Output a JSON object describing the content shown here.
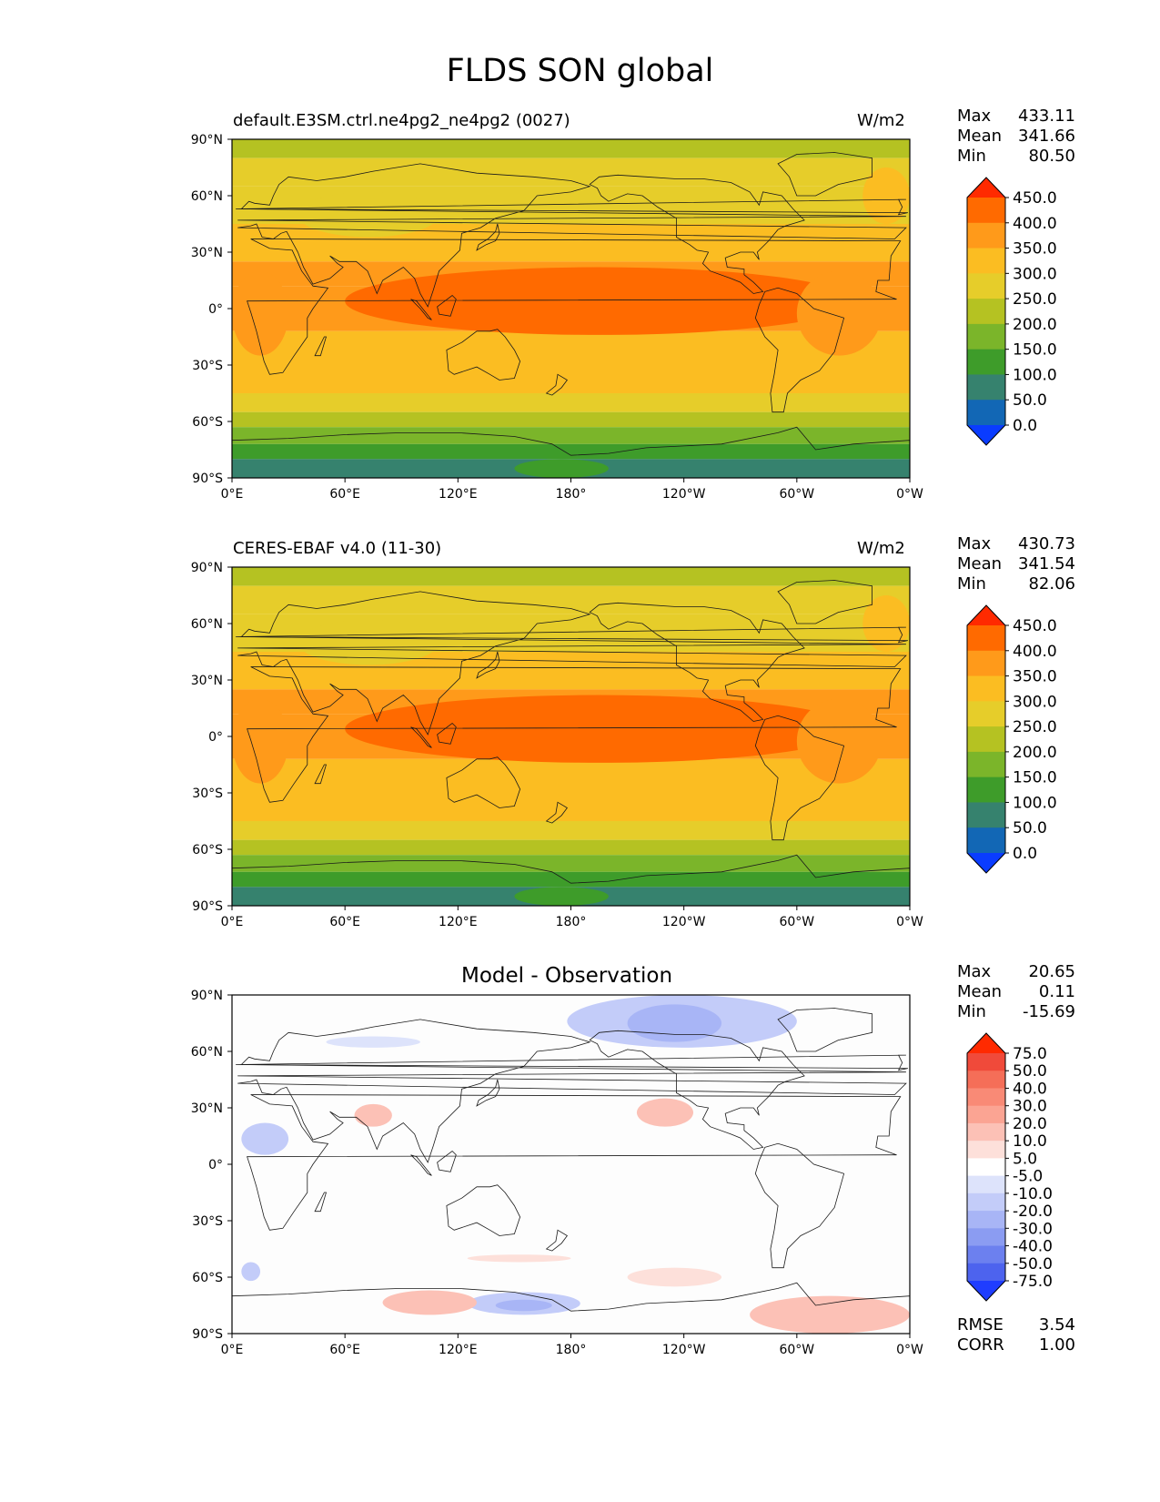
{
  "figure_title": "FLDS SON global",
  "chart_data": [
    {
      "type": "heatmap",
      "title": "default.E3SM.ctrl.ne4pg2_ne4pg2 (0027)",
      "units": "W/m2",
      "stats": [
        {
          "label": "Max",
          "value": "433.11"
        },
        {
          "label": "Mean",
          "value": "341.66"
        },
        {
          "label": "Min",
          "value": "80.50"
        }
      ],
      "xlim": [
        0,
        360
      ],
      "ylim": [
        -90,
        90
      ],
      "x_ticks": [
        "0°E",
        "60°E",
        "120°E",
        "180°",
        "120°W",
        "60°W",
        "0°W"
      ],
      "y_ticks": [
        "90°N",
        "60°N",
        "30°N",
        "0°",
        "30°S",
        "60°S",
        "90°S"
      ],
      "colorbar": {
        "levels": [
          "450.0",
          "400.0",
          "350.0",
          "300.0",
          "250.0",
          "200.0",
          "150.0",
          "100.0",
          "50.0",
          "0.0"
        ],
        "colors": [
          "#ff2a00",
          "#ff6a00",
          "#ff9a1a",
          "#fbbd22",
          "#e6cd2a",
          "#b5c222",
          "#7bb52a",
          "#3e9c2a",
          "#36826e",
          "#1267b5",
          "#0a3cff"
        ],
        "extend": "both"
      }
    },
    {
      "type": "heatmap",
      "title": "CERES-EBAF v4.0 (11-30)",
      "units": "W/m2",
      "stats": [
        {
          "label": "Max",
          "value": "430.73"
        },
        {
          "label": "Mean",
          "value": "341.54"
        },
        {
          "label": "Min",
          "value": "82.06"
        }
      ],
      "xlim": [
        0,
        360
      ],
      "ylim": [
        -90,
        90
      ],
      "x_ticks": [
        "0°E",
        "60°E",
        "120°E",
        "180°",
        "120°W",
        "60°W",
        "0°W"
      ],
      "y_ticks": [
        "90°N",
        "60°N",
        "30°N",
        "0°",
        "30°S",
        "60°S",
        "90°S"
      ],
      "colorbar": {
        "levels": [
          "450.0",
          "400.0",
          "350.0",
          "300.0",
          "250.0",
          "200.0",
          "150.0",
          "100.0",
          "50.0",
          "0.0"
        ],
        "colors": [
          "#ff2a00",
          "#ff6a00",
          "#ff9a1a",
          "#fbbd22",
          "#e6cd2a",
          "#b5c222",
          "#7bb52a",
          "#3e9c2a",
          "#36826e",
          "#1267b5",
          "#0a3cff"
        ],
        "extend": "both"
      }
    },
    {
      "type": "heatmap",
      "title": "Model - Observation",
      "units": "",
      "stats": [
        {
          "label": "Max",
          "value": "20.65"
        },
        {
          "label": "Mean",
          "value": "0.11"
        },
        {
          "label": "Min",
          "value": "-15.69"
        }
      ],
      "extra_stats": [
        {
          "label": "RMSE",
          "value": "3.54"
        },
        {
          "label": "CORR",
          "value": "1.00"
        }
      ],
      "xlim": [
        0,
        360
      ],
      "ylim": [
        -90,
        90
      ],
      "x_ticks": [
        "0°E",
        "60°E",
        "120°E",
        "180°",
        "120°W",
        "60°W",
        "0°W"
      ],
      "y_ticks": [
        "90°N",
        "60°N",
        "30°N",
        "0°",
        "30°S",
        "60°S",
        "90°S"
      ],
      "colorbar": {
        "levels": [
          "75.0",
          "50.0",
          "40.0",
          "30.0",
          "20.0",
          "10.0",
          "5.0",
          "-5.0",
          "-10.0",
          "-20.0",
          "-30.0",
          "-40.0",
          "-50.0",
          "-75.0"
        ],
        "colors": [
          "#ff2a00",
          "#f04a3a",
          "#f56e58",
          "#f98a76",
          "#fba493",
          "#fcc1b6",
          "#fde0da",
          "#ffffff",
          "#dde3fb",
          "#c3ccf9",
          "#a8b5f6",
          "#8b9cf2",
          "#6c80ef",
          "#4d63ee",
          "#1f3dff"
        ],
        "extend": "both"
      }
    }
  ]
}
